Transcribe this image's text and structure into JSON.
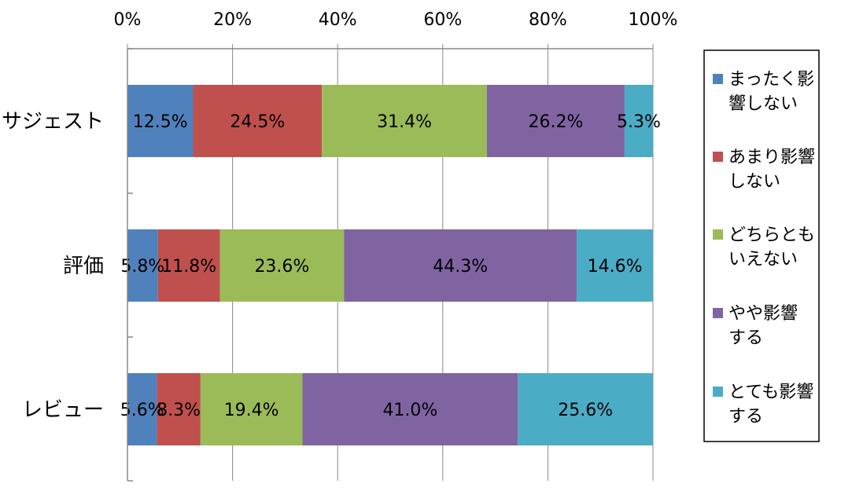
{
  "chart_data": {
    "type": "bar",
    "orientation": "horizontal",
    "stacked": "percent",
    "title": "",
    "xlabel": "",
    "ylabel": "",
    "xlim": [
      0,
      100
    ],
    "xticks": [
      "0%",
      "20%",
      "40%",
      "60%",
      "80%",
      "100%"
    ],
    "x_axis_position": "top",
    "grid": true,
    "legend_position": "right",
    "categories": [
      "サジェスト",
      "評価",
      "レビュー"
    ],
    "series": [
      {
        "name": "まったく影響しない",
        "legend_lines": [
          "まったく影",
          "響しない"
        ],
        "color": "#4F81BD",
        "values": [
          12.5,
          5.8,
          5.6
        ],
        "labels": [
          "12.5%",
          "5.8%",
          "5.6%"
        ]
      },
      {
        "name": "あまり影響しない",
        "legend_lines": [
          "あまり影響",
          "しない"
        ],
        "color": "#C0504D",
        "values": [
          24.5,
          11.8,
          8.3
        ],
        "labels": [
          "24.5%",
          "11.8%",
          "8.3%"
        ]
      },
      {
        "name": "どちらともいえない",
        "legend_lines": [
          "どちらとも",
          "いえない"
        ],
        "color": "#9BBB59",
        "values": [
          31.4,
          23.6,
          19.4
        ],
        "labels": [
          "31.4%",
          "23.6%",
          "19.4%"
        ]
      },
      {
        "name": "やや影響する",
        "legend_lines": [
          "やや影響",
          "する"
        ],
        "color": "#8064A2",
        "values": [
          26.2,
          44.3,
          41.0
        ],
        "labels": [
          "26.2%",
          "44.3%",
          "41.0%"
        ]
      },
      {
        "name": "とても影響する",
        "legend_lines": [
          "とても影響",
          "する"
        ],
        "color": "#4BACC6",
        "values": [
          5.3,
          14.6,
          25.6
        ],
        "labels": [
          "5.3%",
          "14.6%",
          "25.6%"
        ]
      }
    ]
  }
}
